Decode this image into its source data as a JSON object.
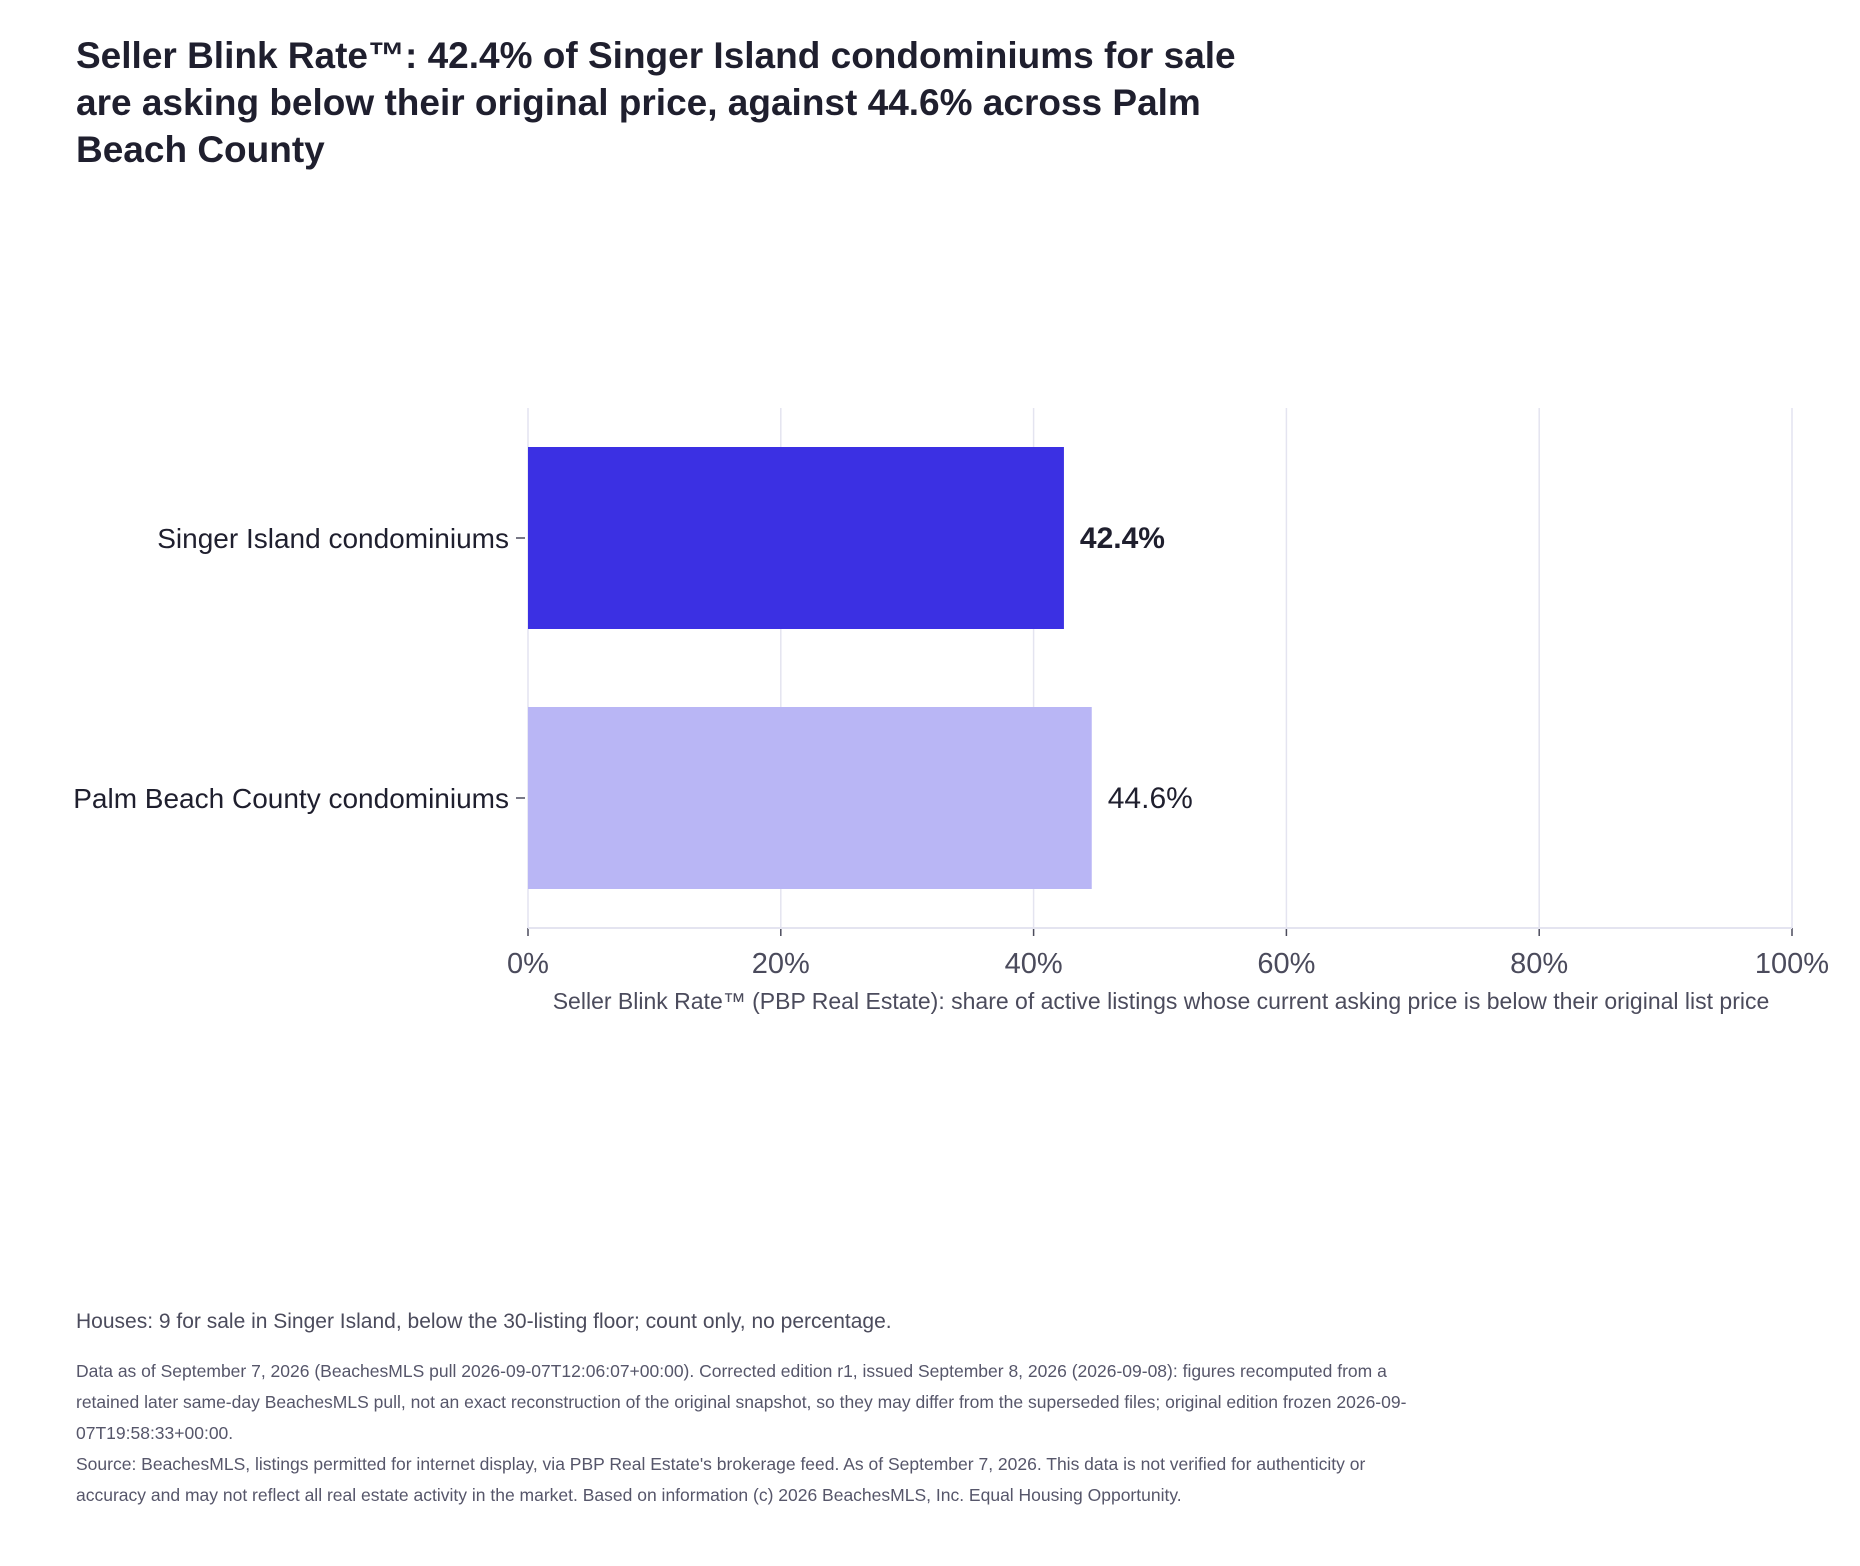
{
  "title": "Seller Blink Rate™: 42.4% of Singer Island condominiums for sale are asking below their original price, against 44.6% across Palm Beach County",
  "chart_data": {
    "type": "bar",
    "orientation": "horizontal",
    "categories": [
      "Singer Island condominiums",
      "Palm Beach County condominiums"
    ],
    "values": [
      42.4,
      44.6
    ],
    "value_labels": [
      "42.4%",
      "44.6%"
    ],
    "bar_colors": [
      "#3b30e3",
      "#b9b6f5"
    ],
    "xlabel": "Seller Blink Rate™ (PBP Real Estate): share of active listings whose current asking price is below their original list price",
    "ylabel": "",
    "xlim": [
      0,
      100
    ],
    "xticks": [
      0,
      20,
      40,
      60,
      80,
      100
    ],
    "xtick_labels": [
      "0%",
      "20%",
      "40%",
      "60%",
      "80%",
      "100%"
    ],
    "grid": "vertical",
    "legend": "none"
  },
  "houses_note": "Houses: 9 for sale in Singer Island, below the 30-listing floor; count only, no percentage.",
  "footnotes": {
    "edition": "Data as of September 7, 2026 (BeachesMLS pull 2026-09-07T12:06:07+00:00). Corrected edition r1, issued September 8, 2026 (2026-09-08): figures recomputed from a retained later same-day BeachesMLS pull, not an exact reconstruction of the original snapshot, so they may differ from the superseded files; original edition frozen 2026-09-07T19:58:33+00:00.",
    "source": "Source: BeachesMLS, listings permitted for internet display, via PBP Real Estate's brokerage feed. As of September 7, 2026. This data is not verified for authenticity or accuracy and may not reflect all real estate activity in the market. Based on information (c) 2026 BeachesMLS, Inc. Equal Housing Opportunity."
  },
  "colors": {
    "grid": "#e4e4f0",
    "axis_text": "#4b4b5c",
    "label_text": "#1f1f2e"
  }
}
